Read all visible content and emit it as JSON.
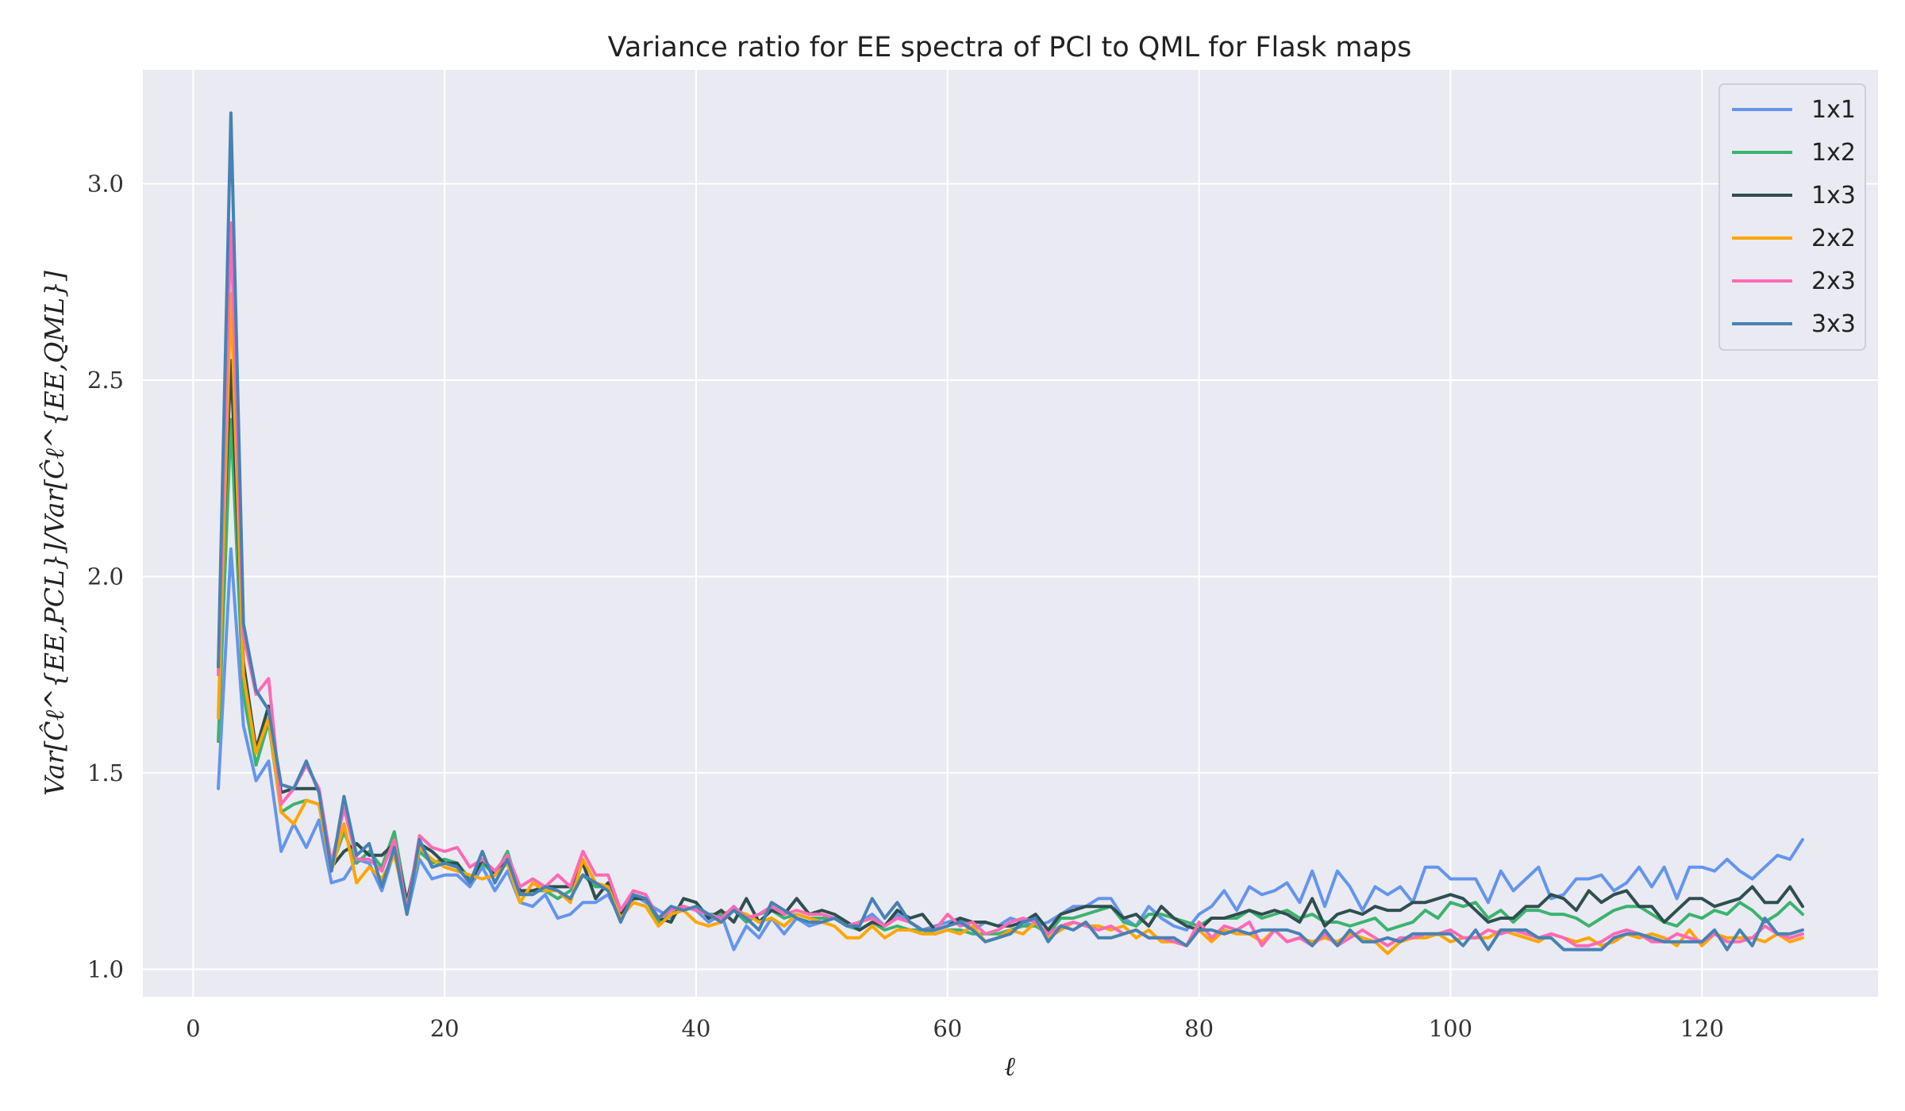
{
  "chart_data": {
    "type": "line",
    "title": "Variance ratio for EE spectra of PCl to QML for Flask maps",
    "xlabel": "ℓ",
    "ylabel": "Var[Ĉℓ^{EE,PCL}]/Var[Ĉℓ^{EE,QML}]",
    "xlim": [
      -4,
      134
    ],
    "ylim": [
      0.93,
      3.29
    ],
    "xticks": [
      0,
      20,
      40,
      60,
      80,
      100,
      120
    ],
    "yticks": [
      1.0,
      1.5,
      2.0,
      2.5,
      3.0
    ],
    "ytick_labels": [
      "1.0",
      "1.5",
      "2.0",
      "2.5",
      "3.0"
    ],
    "grid": true,
    "legend_position": "top-right",
    "x": [
      2,
      3,
      4,
      5,
      6,
      7,
      8,
      9,
      10,
      11,
      12,
      13,
      14,
      15,
      16,
      17,
      18,
      19,
      20,
      21,
      22,
      23,
      24,
      25,
      26,
      27,
      28,
      29,
      30,
      31,
      32,
      33,
      34,
      35,
      36,
      37,
      38,
      39,
      40,
      41,
      42,
      43,
      44,
      45,
      46,
      47,
      48,
      49,
      50,
      51,
      52,
      53,
      54,
      55,
      56,
      57,
      58,
      59,
      60,
      61,
      62,
      63,
      64,
      65,
      66,
      67,
      68,
      69,
      70,
      71,
      72,
      73,
      74,
      75,
      76,
      77,
      78,
      79,
      80,
      81,
      82,
      83,
      84,
      85,
      86,
      87,
      88,
      89,
      90,
      91,
      92,
      93,
      94,
      95,
      96,
      97,
      98,
      99,
      100,
      101,
      102,
      103,
      104,
      105,
      106,
      107,
      108,
      109,
      110,
      111,
      112,
      113,
      114,
      115,
      116,
      117,
      118,
      119,
      120,
      121,
      122,
      123,
      124,
      125,
      126,
      127,
      128
    ],
    "series": [
      {
        "name": "1x1",
        "color": "#6495ed",
        "values": [
          1.46,
          2.07,
          1.62,
          1.48,
          1.53,
          1.3,
          1.37,
          1.31,
          1.38,
          1.22,
          1.23,
          1.28,
          1.27,
          1.2,
          1.3,
          1.14,
          1.28,
          1.23,
          1.24,
          1.24,
          1.21,
          1.26,
          1.2,
          1.25,
          1.17,
          1.16,
          1.19,
          1.13,
          1.14,
          1.17,
          1.17,
          1.19,
          1.13,
          1.19,
          1.17,
          1.15,
          1.13,
          1.16,
          1.15,
          1.12,
          1.14,
          1.05,
          1.11,
          1.08,
          1.13,
          1.09,
          1.13,
          1.11,
          1.12,
          1.13,
          1.11,
          1.12,
          1.14,
          1.11,
          1.14,
          1.12,
          1.1,
          1.11,
          1.12,
          1.13,
          1.1,
          1.12,
          1.11,
          1.13,
          1.12,
          1.11,
          1.12,
          1.14,
          1.16,
          1.16,
          1.18,
          1.18,
          1.13,
          1.11,
          1.16,
          1.13,
          1.11,
          1.1,
          1.14,
          1.16,
          1.2,
          1.15,
          1.21,
          1.19,
          1.2,
          1.22,
          1.17,
          1.25,
          1.16,
          1.25,
          1.21,
          1.15,
          1.21,
          1.19,
          1.21,
          1.17,
          1.26,
          1.26,
          1.23,
          1.23,
          1.23,
          1.17,
          1.25,
          1.2,
          1.23,
          1.26,
          1.18,
          1.19,
          1.23,
          1.23,
          1.24,
          1.2,
          1.22,
          1.26,
          1.21,
          1.26,
          1.18,
          1.26,
          1.26,
          1.25,
          1.28,
          1.25,
          1.23,
          1.26,
          1.29,
          1.28,
          1.33
        ]
      },
      {
        "name": "1x2",
        "color": "#3cb371",
        "values": [
          1.58,
          2.4,
          1.7,
          1.52,
          1.63,
          1.4,
          1.42,
          1.43,
          1.42,
          1.26,
          1.35,
          1.27,
          1.3,
          1.26,
          1.35,
          1.17,
          1.3,
          1.27,
          1.28,
          1.27,
          1.23,
          1.27,
          1.24,
          1.3,
          1.19,
          1.2,
          1.2,
          1.18,
          1.2,
          1.24,
          1.21,
          1.21,
          1.14,
          1.18,
          1.18,
          1.12,
          1.14,
          1.16,
          1.15,
          1.14,
          1.14,
          1.15,
          1.12,
          1.14,
          1.15,
          1.13,
          1.14,
          1.13,
          1.13,
          1.13,
          1.11,
          1.1,
          1.12,
          1.1,
          1.11,
          1.1,
          1.1,
          1.09,
          1.1,
          1.1,
          1.09,
          1.09,
          1.09,
          1.1,
          1.11,
          1.11,
          1.09,
          1.13,
          1.13,
          1.14,
          1.15,
          1.16,
          1.12,
          1.11,
          1.14,
          1.14,
          1.13,
          1.12,
          1.11,
          1.13,
          1.13,
          1.13,
          1.15,
          1.13,
          1.14,
          1.15,
          1.13,
          1.14,
          1.12,
          1.12,
          1.11,
          1.12,
          1.13,
          1.1,
          1.11,
          1.12,
          1.15,
          1.13,
          1.17,
          1.16,
          1.17,
          1.13,
          1.15,
          1.12,
          1.15,
          1.15,
          1.14,
          1.14,
          1.13,
          1.11,
          1.13,
          1.15,
          1.16,
          1.16,
          1.14,
          1.12,
          1.11,
          1.14,
          1.13,
          1.15,
          1.14,
          1.17,
          1.15,
          1.12,
          1.14,
          1.17,
          1.14
        ]
      },
      {
        "name": "1x3",
        "color": "#2f4f4f",
        "values": [
          1.77,
          2.55,
          1.78,
          1.56,
          1.67,
          1.45,
          1.46,
          1.46,
          1.46,
          1.26,
          1.3,
          1.32,
          1.29,
          1.29,
          1.32,
          1.17,
          1.32,
          1.3,
          1.27,
          1.27,
          1.22,
          1.28,
          1.24,
          1.28,
          1.2,
          1.2,
          1.21,
          1.21,
          1.21,
          1.27,
          1.18,
          1.22,
          1.14,
          1.18,
          1.18,
          1.13,
          1.12,
          1.18,
          1.17,
          1.13,
          1.15,
          1.12,
          1.18,
          1.12,
          1.15,
          1.14,
          1.18,
          1.14,
          1.15,
          1.14,
          1.12,
          1.1,
          1.12,
          1.11,
          1.15,
          1.13,
          1.14,
          1.1,
          1.11,
          1.13,
          1.12,
          1.12,
          1.11,
          1.11,
          1.12,
          1.14,
          1.1,
          1.14,
          1.15,
          1.16,
          1.16,
          1.16,
          1.13,
          1.14,
          1.11,
          1.16,
          1.13,
          1.11,
          1.1,
          1.13,
          1.13,
          1.14,
          1.15,
          1.14,
          1.15,
          1.14,
          1.12,
          1.18,
          1.11,
          1.14,
          1.15,
          1.14,
          1.16,
          1.15,
          1.15,
          1.17,
          1.17,
          1.18,
          1.19,
          1.18,
          1.15,
          1.12,
          1.13,
          1.13,
          1.16,
          1.16,
          1.19,
          1.18,
          1.15,
          1.2,
          1.17,
          1.19,
          1.2,
          1.16,
          1.16,
          1.12,
          1.15,
          1.18,
          1.18,
          1.16,
          1.17,
          1.18,
          1.21,
          1.17,
          1.17,
          1.21,
          1.16
        ]
      },
      {
        "name": "2x2",
        "color": "#ffa500",
        "values": [
          1.64,
          2.72,
          1.75,
          1.55,
          1.64,
          1.4,
          1.37,
          1.43,
          1.42,
          1.25,
          1.37,
          1.22,
          1.26,
          1.23,
          1.29,
          1.16,
          1.31,
          1.28,
          1.26,
          1.25,
          1.24,
          1.23,
          1.24,
          1.27,
          1.17,
          1.22,
          1.2,
          1.2,
          1.17,
          1.28,
          1.22,
          1.21,
          1.13,
          1.17,
          1.16,
          1.11,
          1.14,
          1.15,
          1.12,
          1.11,
          1.12,
          1.15,
          1.14,
          1.12,
          1.13,
          1.11,
          1.14,
          1.13,
          1.12,
          1.11,
          1.08,
          1.08,
          1.11,
          1.08,
          1.1,
          1.1,
          1.09,
          1.09,
          1.1,
          1.09,
          1.11,
          1.07,
          1.08,
          1.1,
          1.09,
          1.12,
          1.08,
          1.1,
          1.12,
          1.11,
          1.11,
          1.1,
          1.11,
          1.08,
          1.1,
          1.07,
          1.07,
          1.06,
          1.1,
          1.07,
          1.1,
          1.09,
          1.09,
          1.07,
          1.1,
          1.07,
          1.08,
          1.07,
          1.08,
          1.07,
          1.09,
          1.08,
          1.07,
          1.04,
          1.07,
          1.08,
          1.08,
          1.09,
          1.07,
          1.08,
          1.08,
          1.08,
          1.1,
          1.09,
          1.08,
          1.07,
          1.09,
          1.08,
          1.07,
          1.08,
          1.06,
          1.07,
          1.09,
          1.08,
          1.09,
          1.08,
          1.06,
          1.1,
          1.06,
          1.09,
          1.08,
          1.08,
          1.08,
          1.07,
          1.09,
          1.07,
          1.08
        ]
      },
      {
        "name": "2x3",
        "color": "#ff69b4",
        "values": [
          1.75,
          2.9,
          1.85,
          1.7,
          1.74,
          1.42,
          1.46,
          1.52,
          1.46,
          1.27,
          1.41,
          1.28,
          1.28,
          1.25,
          1.33,
          1.15,
          1.34,
          1.31,
          1.3,
          1.31,
          1.26,
          1.28,
          1.25,
          1.29,
          1.21,
          1.23,
          1.21,
          1.24,
          1.21,
          1.3,
          1.24,
          1.24,
          1.15,
          1.2,
          1.19,
          1.13,
          1.15,
          1.16,
          1.15,
          1.14,
          1.13,
          1.16,
          1.13,
          1.14,
          1.16,
          1.14,
          1.15,
          1.14,
          1.14,
          1.13,
          1.11,
          1.12,
          1.13,
          1.11,
          1.13,
          1.12,
          1.1,
          1.1,
          1.14,
          1.11,
          1.12,
          1.09,
          1.1,
          1.12,
          1.13,
          1.12,
          1.09,
          1.11,
          1.12,
          1.11,
          1.1,
          1.11,
          1.09,
          1.1,
          1.08,
          1.08,
          1.07,
          1.06,
          1.12,
          1.08,
          1.11,
          1.1,
          1.12,
          1.06,
          1.1,
          1.07,
          1.08,
          1.06,
          1.09,
          1.06,
          1.08,
          1.1,
          1.08,
          1.06,
          1.08,
          1.08,
          1.09,
          1.09,
          1.1,
          1.08,
          1.08,
          1.1,
          1.09,
          1.1,
          1.09,
          1.08,
          1.09,
          1.08,
          1.06,
          1.06,
          1.07,
          1.09,
          1.1,
          1.09,
          1.07,
          1.07,
          1.09,
          1.08,
          1.07,
          1.09,
          1.07,
          1.07,
          1.08,
          1.11,
          1.09,
          1.08,
          1.09
        ]
      },
      {
        "name": "3x3",
        "color": "#4682b4",
        "values": [
          1.77,
          3.18,
          1.88,
          1.71,
          1.66,
          1.47,
          1.46,
          1.53,
          1.45,
          1.25,
          1.44,
          1.29,
          1.32,
          1.21,
          1.31,
          1.14,
          1.33,
          1.26,
          1.27,
          1.26,
          1.22,
          1.3,
          1.22,
          1.28,
          1.19,
          1.19,
          1.21,
          1.2,
          1.18,
          1.24,
          1.22,
          1.2,
          1.12,
          1.19,
          1.18,
          1.13,
          1.16,
          1.15,
          1.16,
          1.14,
          1.12,
          1.15,
          1.13,
          1.1,
          1.17,
          1.15,
          1.13,
          1.12,
          1.12,
          1.13,
          1.11,
          1.11,
          1.18,
          1.13,
          1.17,
          1.12,
          1.1,
          1.1,
          1.11,
          1.12,
          1.1,
          1.07,
          1.08,
          1.09,
          1.12,
          1.13,
          1.07,
          1.11,
          1.1,
          1.12,
          1.08,
          1.08,
          1.09,
          1.1,
          1.08,
          1.08,
          1.08,
          1.06,
          1.1,
          1.1,
          1.09,
          1.1,
          1.09,
          1.1,
          1.1,
          1.1,
          1.09,
          1.06,
          1.1,
          1.06,
          1.1,
          1.07,
          1.07,
          1.08,
          1.07,
          1.09,
          1.09,
          1.09,
          1.09,
          1.06,
          1.1,
          1.05,
          1.1,
          1.1,
          1.1,
          1.08,
          1.08,
          1.05,
          1.05,
          1.05,
          1.05,
          1.08,
          1.09,
          1.09,
          1.08,
          1.07,
          1.07,
          1.07,
          1.07,
          1.1,
          1.05,
          1.1,
          1.06,
          1.13,
          1.09,
          1.09,
          1.1
        ]
      }
    ]
  }
}
